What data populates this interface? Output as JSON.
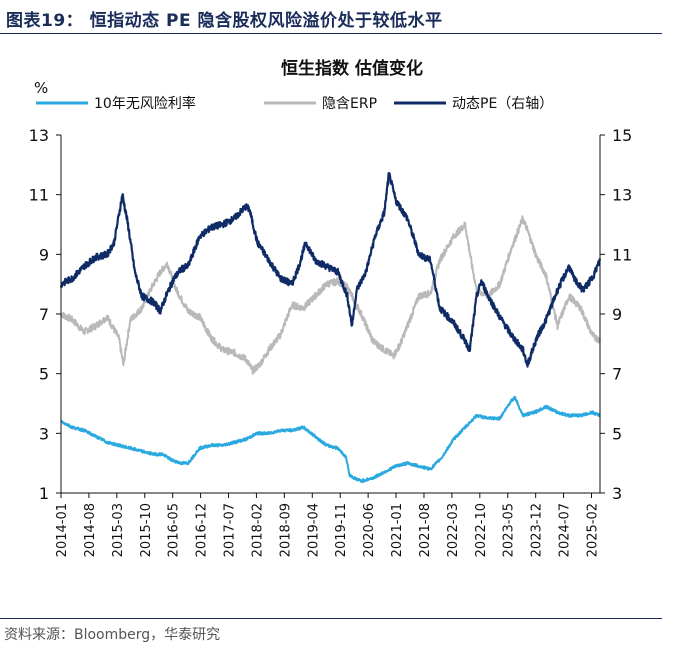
{
  "figure": {
    "title": "图表19：  恒指动态 PE 隐含股权风险溢价处于较低水平",
    "source": "资料来源：Bloomberg，华泰研究"
  },
  "chart_data": {
    "type": "line",
    "title": "恒生指数 估值变化",
    "y_left_unit": "%",
    "y_left_range": [
      1,
      13
    ],
    "y_left_ticks": [
      1,
      3,
      5,
      7,
      9,
      11,
      13
    ],
    "y_right_range": [
      3,
      15
    ],
    "y_right_ticks": [
      3,
      5,
      7,
      9,
      11,
      13,
      15
    ],
    "x_range": [
      2014.0,
      2025.67
    ],
    "x_tick_labels": [
      "2014-01",
      "2014-08",
      "2015-03",
      "2015-10",
      "2016-05",
      "2016-12",
      "2017-07",
      "2018-02",
      "2018-09",
      "2019-04",
      "2019-11",
      "2020-06",
      "2021-01",
      "2021-08",
      "2022-03",
      "2022-10",
      "2023-05",
      "2023-12",
      "2024-07",
      "2025-02"
    ],
    "legend_position": "top",
    "series": [
      {
        "name": "10年无风险利率",
        "color": "#29a9e0",
        "axis": "left",
        "x": [
          2014.0,
          2014.25,
          2014.5,
          2014.75,
          2015.0,
          2015.25,
          2015.5,
          2015.75,
          2016.0,
          2016.2,
          2016.4,
          2016.6,
          2016.75,
          2017.0,
          2017.25,
          2017.5,
          2017.75,
          2018.0,
          2018.25,
          2018.5,
          2018.75,
          2019.0,
          2019.25,
          2019.5,
          2019.75,
          2020.0,
          2020.17,
          2020.25,
          2020.35,
          2020.5,
          2020.75,
          2021.0,
          2021.25,
          2021.5,
          2021.75,
          2022.0,
          2022.25,
          2022.5,
          2022.75,
          2023.0,
          2023.25,
          2023.5,
          2023.75,
          2023.83,
          2024.0,
          2024.25,
          2024.5,
          2024.75,
          2025.0,
          2025.25,
          2025.5,
          2025.67
        ],
        "values": [
          3.4,
          3.2,
          3.1,
          2.9,
          2.7,
          2.6,
          2.5,
          2.4,
          2.3,
          2.3,
          2.1,
          2.0,
          2.0,
          2.5,
          2.6,
          2.6,
          2.7,
          2.8,
          3.0,
          3.0,
          3.1,
          3.1,
          3.2,
          2.9,
          2.6,
          2.5,
          2.2,
          1.6,
          1.5,
          1.4,
          1.5,
          1.7,
          1.9,
          2.0,
          1.9,
          1.8,
          2.2,
          2.8,
          3.2,
          3.6,
          3.5,
          3.5,
          4.1,
          4.2,
          3.6,
          3.7,
          3.9,
          3.7,
          3.6,
          3.6,
          3.7,
          3.6
        ]
      },
      {
        "name": "隐含ERP",
        "color": "#b9b9b9",
        "axis": "left",
        "x": [
          2014.0,
          2014.25,
          2014.5,
          2014.75,
          2015.0,
          2015.25,
          2015.35,
          2015.5,
          2015.75,
          2016.0,
          2016.15,
          2016.3,
          2016.5,
          2016.75,
          2017.0,
          2017.25,
          2017.5,
          2017.75,
          2018.0,
          2018.15,
          2018.3,
          2018.5,
          2018.75,
          2019.0,
          2019.25,
          2019.5,
          2019.75,
          2020.0,
          2020.2,
          2020.5,
          2020.75,
          2021.0,
          2021.2,
          2021.35,
          2021.5,
          2021.75,
          2022.0,
          2022.2,
          2022.5,
          2022.75,
          2022.9,
          2023.0,
          2023.25,
          2023.5,
          2023.75,
          2023.9,
          2024.0,
          2024.1,
          2024.3,
          2024.5,
          2024.75,
          2025.0,
          2025.25,
          2025.5,
          2025.67
        ],
        "values": [
          7.0,
          6.8,
          6.4,
          6.6,
          6.9,
          6.2,
          5.3,
          6.8,
          7.2,
          8.0,
          8.4,
          8.7,
          7.8,
          7.1,
          6.9,
          6.2,
          5.8,
          5.7,
          5.5,
          5.1,
          5.3,
          5.8,
          6.3,
          7.3,
          7.2,
          7.6,
          8.0,
          8.1,
          7.9,
          7.0,
          6.1,
          5.8,
          5.6,
          6.0,
          6.6,
          7.6,
          7.7,
          8.8,
          9.6,
          10.0,
          8.6,
          7.8,
          7.6,
          8.0,
          9.2,
          9.8,
          10.2,
          9.8,
          8.9,
          8.3,
          6.6,
          7.6,
          7.2,
          6.3,
          6.1
        ]
      },
      {
        "name": "动态PE（右轴）",
        "color": "#0f2b66",
        "axis": "right",
        "x": [
          2014.0,
          2014.25,
          2014.5,
          2014.75,
          2015.0,
          2015.15,
          2015.33,
          2015.45,
          2015.6,
          2015.75,
          2016.0,
          2016.15,
          2016.3,
          2016.45,
          2016.6,
          2016.75,
          2017.0,
          2017.25,
          2017.5,
          2017.75,
          2018.0,
          2018.08,
          2018.25,
          2018.5,
          2018.75,
          2019.0,
          2019.15,
          2019.3,
          2019.5,
          2019.75,
          2020.0,
          2020.2,
          2020.3,
          2020.4,
          2020.6,
          2020.8,
          2021.0,
          2021.1,
          2021.25,
          2021.5,
          2021.75,
          2022.0,
          2022.2,
          2022.5,
          2022.75,
          2022.85,
          2023.0,
          2023.1,
          2023.25,
          2023.5,
          2023.75,
          2024.0,
          2024.1,
          2024.3,
          2024.5,
          2024.75,
          2025.0,
          2025.1,
          2025.3,
          2025.5,
          2025.67
        ],
        "values": [
          10.0,
          10.2,
          10.6,
          10.9,
          11.0,
          11.4,
          13.0,
          12.0,
          10.4,
          9.6,
          9.4,
          9.1,
          9.7,
          10.2,
          10.5,
          10.6,
          11.6,
          11.9,
          12.0,
          12.2,
          12.6,
          12.5,
          11.4,
          10.8,
          10.2,
          10.0,
          10.6,
          11.4,
          10.8,
          10.6,
          10.4,
          9.6,
          8.6,
          9.8,
          10.4,
          11.6,
          12.4,
          13.7,
          12.8,
          12.2,
          11.0,
          10.8,
          9.2,
          8.7,
          8.1,
          7.8,
          9.6,
          10.1,
          9.6,
          8.9,
          8.3,
          7.8,
          7.3,
          8.2,
          8.8,
          9.8,
          10.6,
          10.2,
          9.8,
          10.2,
          10.8
        ]
      }
    ]
  }
}
